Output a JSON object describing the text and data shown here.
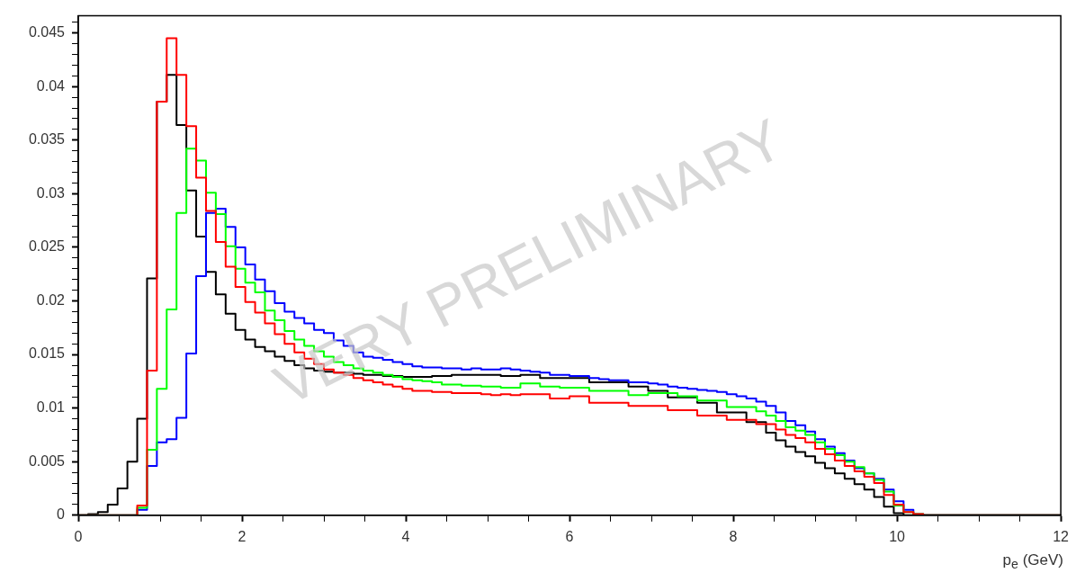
{
  "chart_data": {
    "type": "histogram",
    "xlabel": "p$_{e}$ (GeV)",
    "annotations": [
      "VERY PRELIMINARY"
    ],
    "bins": [
      0,
      0.12,
      0.24,
      0.36,
      0.48,
      0.6,
      0.72,
      0.84,
      0.96,
      1.08,
      1.2,
      1.32,
      1.44,
      1.56,
      1.68,
      1.8,
      1.92,
      2.04,
      2.16,
      2.28,
      2.4,
      2.52,
      2.64,
      2.76,
      2.88,
      3,
      3.12,
      3.24,
      3.36,
      3.48,
      3.6,
      3.72,
      3.84,
      3.96,
      4.08,
      4.2,
      4.32,
      4.44,
      4.56,
      4.68,
      4.8,
      4.92,
      5.04,
      5.16,
      5.28,
      5.4,
      5.52,
      5.64,
      5.76,
      5.88,
      6,
      6.12,
      6.24,
      6.36,
      6.48,
      6.6,
      6.72,
      6.84,
      6.96,
      7.08,
      7.2,
      7.32,
      7.44,
      7.56,
      7.68,
      7.8,
      7.92,
      8.04,
      8.16,
      8.28,
      8.4,
      8.52,
      8.64,
      8.76,
      8.88,
      9,
      9.12,
      9.24,
      9.36,
      9.48,
      9.6,
      9.72,
      9.84,
      9.96,
      10.08,
      10.2,
      10.32,
      10.44,
      10.56,
      10.68,
      10.8,
      10.92,
      11.04,
      11.16,
      11.28,
      11.4,
      11.52,
      11.64,
      11.76,
      11.88,
      12
    ],
    "series": [
      {
        "color": "#ff0000",
        "values": [
          0,
          0,
          0,
          0,
          0,
          0,
          0.0009,
          0.0135,
          0.0386,
          0.0445,
          0.0411,
          0.0363,
          0.0315,
          0.0284,
          0.0255,
          0.0232,
          0.0213,
          0.0199,
          0.0189,
          0.0179,
          0.0169,
          0.016,
          0.0152,
          0.0146,
          0.0141,
          0.0136,
          0.0133,
          0.0131,
          0.0128,
          0.0126,
          0.0124,
          0.0122,
          0.012,
          0.0118,
          0.0116,
          0.0116,
          0.0115,
          0.0115,
          0.0114,
          0.0114,
          0.0114,
          0.0113,
          0.0112,
          0.0113,
          0.0112,
          0.0113,
          0.0113,
          0.0113,
          0.0109,
          0.0109,
          0.0111,
          0.0111,
          0.0105,
          0.0105,
          0.0105,
          0.0105,
          0.0102,
          0.0102,
          0.0102,
          0.0102,
          0.0098,
          0.0098,
          0.0098,
          0.0093,
          0.0093,
          0.0093,
          0.0089,
          0.0089,
          0.0089,
          0.0085,
          0.0085,
          0.008,
          0.0075,
          0.0072,
          0.0068,
          0.0062,
          0.0057,
          0.0051,
          0.0046,
          0.0041,
          0.0036,
          0.003,
          0.0019,
          0.001,
          0.0003,
          0.0001,
          0,
          0,
          0,
          0,
          0,
          0,
          0,
          0,
          0,
          0,
          0,
          0,
          0,
          0
        ]
      },
      {
        "color": "#00ff00",
        "values": [
          0,
          0,
          0,
          0,
          0,
          0,
          0.0007,
          0.0061,
          0.0118,
          0.0192,
          0.0282,
          0.0342,
          0.0331,
          0.0301,
          0.0281,
          0.0251,
          0.023,
          0.0217,
          0.0208,
          0.0191,
          0.0182,
          0.0172,
          0.0164,
          0.0158,
          0.0153,
          0.0148,
          0.0143,
          0.014,
          0.0137,
          0.0135,
          0.0133,
          0.0131,
          0.0129,
          0.0127,
          0.0126,
          0.0125,
          0.0124,
          0.0122,
          0.0122,
          0.0121,
          0.0121,
          0.012,
          0.012,
          0.0119,
          0.0119,
          0.0123,
          0.0123,
          0.012,
          0.012,
          0.0119,
          0.0119,
          0.0119,
          0.0116,
          0.0116,
          0.0116,
          0.0116,
          0.0112,
          0.0112,
          0.0114,
          0.0114,
          0.0114,
          0.0111,
          0.0111,
          0.0107,
          0.0107,
          0.0107,
          0.0101,
          0.0101,
          0.0101,
          0.0097,
          0.0093,
          0.0088,
          0.0082,
          0.0079,
          0.0075,
          0.0068,
          0.0062,
          0.0056,
          0.005,
          0.0045,
          0.0039,
          0.0033,
          0.0022,
          0.0009,
          0.0003,
          0.0001,
          0,
          0,
          0,
          0,
          0,
          0,
          0,
          0,
          0,
          0,
          0,
          0,
          0,
          0
        ]
      },
      {
        "color": "#0000ff",
        "values": [
          0,
          0,
          0,
          0,
          0,
          0,
          0.0005,
          0.0046,
          0.0068,
          0.0071,
          0.0091,
          0.0151,
          0.0223,
          0.0282,
          0.0286,
          0.0269,
          0.025,
          0.0234,
          0.022,
          0.0209,
          0.0198,
          0.019,
          0.0184,
          0.0179,
          0.0173,
          0.017,
          0.0163,
          0.0158,
          0.0152,
          0.0148,
          0.0147,
          0.0145,
          0.0143,
          0.0141,
          0.0139,
          0.0138,
          0.0138,
          0.0137,
          0.0137,
          0.0136,
          0.0137,
          0.0136,
          0.0136,
          0.0137,
          0.0136,
          0.0135,
          0.0134,
          0.0133,
          0.0131,
          0.0131,
          0.013,
          0.013,
          0.0128,
          0.0127,
          0.0126,
          0.0126,
          0.0124,
          0.0124,
          0.0123,
          0.0122,
          0.012,
          0.0119,
          0.0118,
          0.0117,
          0.0116,
          0.0115,
          0.0113,
          0.0111,
          0.0109,
          0.0106,
          0.0102,
          0.0096,
          0.0088,
          0.0084,
          0.0078,
          0.0071,
          0.0064,
          0.0058,
          0.0051,
          0.0044,
          0.0039,
          0.0034,
          0.0024,
          0.0013,
          0.0005,
          0.0001,
          0,
          0,
          0,
          0,
          0,
          0,
          0,
          0,
          0,
          0,
          0,
          0,
          0,
          0
        ]
      },
      {
        "color": "#000000",
        "values": [
          0,
          0.0001,
          0.0003,
          0.001,
          0.0025,
          0.005,
          0.009,
          0.0221,
          0.0386,
          0.0411,
          0.0364,
          0.0303,
          0.026,
          0.0227,
          0.0206,
          0.0188,
          0.0173,
          0.0164,
          0.0157,
          0.0153,
          0.0148,
          0.0144,
          0.014,
          0.0137,
          0.0135,
          0.0134,
          0.0133,
          0.0133,
          0.0132,
          0.0131,
          0.0131,
          0.013,
          0.013,
          0.0129,
          0.0129,
          0.0129,
          0.013,
          0.013,
          0.0131,
          0.0131,
          0.0131,
          0.0131,
          0.0131,
          0.013,
          0.013,
          0.0131,
          0.0131,
          0.0128,
          0.0128,
          0.0128,
          0.0128,
          0.0128,
          0.0124,
          0.0124,
          0.0124,
          0.0124,
          0.012,
          0.012,
          0.0116,
          0.0116,
          0.011,
          0.011,
          0.011,
          0.0105,
          0.0105,
          0.0096,
          0.0096,
          0.0096,
          0.0087,
          0.0087,
          0.0077,
          0.007,
          0.0064,
          0.0059,
          0.0055,
          0.0049,
          0.0044,
          0.0039,
          0.0034,
          0.0029,
          0.0024,
          0.0017,
          0.0008,
          0.0002,
          0,
          0,
          0,
          0,
          0,
          0,
          0,
          0,
          0,
          0,
          0,
          0,
          0,
          0,
          0,
          0
        ]
      }
    ],
    "xlim": [
      0,
      12
    ],
    "xticks": [
      0,
      {
        "value": 0.5,
        "label": null
      },
      {
        "value": 1,
        "label": null
      },
      {
        "value": 1.5,
        "label": null
      },
      2,
      {
        "value": 2.5,
        "label": null
      },
      {
        "value": 3,
        "label": null
      },
      {
        "value": 3.5,
        "label": null
      },
      4,
      {
        "value": 4.5,
        "label": null
      },
      {
        "value": 5,
        "label": null
      },
      {
        "value": 5.5,
        "label": null
      },
      6,
      {
        "value": 6.5,
        "label": null
      },
      {
        "value": 7,
        "label": null
      },
      {
        "value": 7.5,
        "label": null
      },
      8,
      {
        "value": 8.5,
        "label": null
      },
      {
        "value": 9,
        "label": null
      },
      {
        "value": 9.5,
        "label": null
      },
      10,
      {
        "value": 10.5,
        "label": null
      },
      {
        "value": 11,
        "label": null
      },
      {
        "value": 11.5,
        "label": null
      },
      12
    ],
    "ylim": [
      0,
      0.0466
    ],
    "yticks": [
      0,
      {
        "value": 0.001,
        "label": null
      },
      {
        "value": 0.002,
        "label": null
      },
      {
        "value": 0.003,
        "label": null
      },
      {
        "value": 0.004,
        "label": null
      },
      0.005,
      {
        "value": 0.006,
        "label": null
      },
      {
        "value": 0.007,
        "label": null
      },
      {
        "value": 0.008,
        "label": null
      },
      {
        "value": 0.009,
        "label": null
      },
      0.01,
      {
        "value": 0.011,
        "label": null
      },
      {
        "value": 0.012,
        "label": null
      },
      {
        "value": 0.013,
        "label": null
      },
      {
        "value": 0.014,
        "label": null
      },
      0.015,
      {
        "value": 0.016,
        "label": null
      },
      {
        "value": 0.017,
        "label": null
      },
      {
        "value": 0.018,
        "label": null
      },
      {
        "value": 0.019,
        "label": null
      },
      0.02,
      {
        "value": 0.021,
        "label": null
      },
      {
        "value": 0.022,
        "label": null
      },
      {
        "value": 0.023,
        "label": null
      },
      {
        "value": 0.024,
        "label": null
      },
      0.025,
      {
        "value": 0.026,
        "label": null
      },
      {
        "value": 0.027,
        "label": null
      },
      {
        "value": 0.028,
        "label": null
      },
      {
        "value": 0.029,
        "label": null
      },
      0.03,
      {
        "value": 0.031,
        "label": null
      },
      {
        "value": 0.032,
        "label": null
      },
      {
        "value": 0.033,
        "label": null
      },
      {
        "value": 0.034,
        "label": null
      },
      0.035,
      {
        "value": 0.036,
        "label": null
      },
      {
        "value": 0.037,
        "label": null
      },
      {
        "value": 0.038,
        "label": null
      },
      {
        "value": 0.039,
        "label": null
      },
      0.04,
      {
        "value": 0.041,
        "label": null
      },
      {
        "value": 0.042,
        "label": null
      },
      {
        "value": 0.043,
        "label": null
      },
      {
        "value": 0.044,
        "label": null
      },
      0.045,
      {
        "value": 0.046,
        "label": null
      }
    ],
    "grid": false,
    "legend": false
  }
}
